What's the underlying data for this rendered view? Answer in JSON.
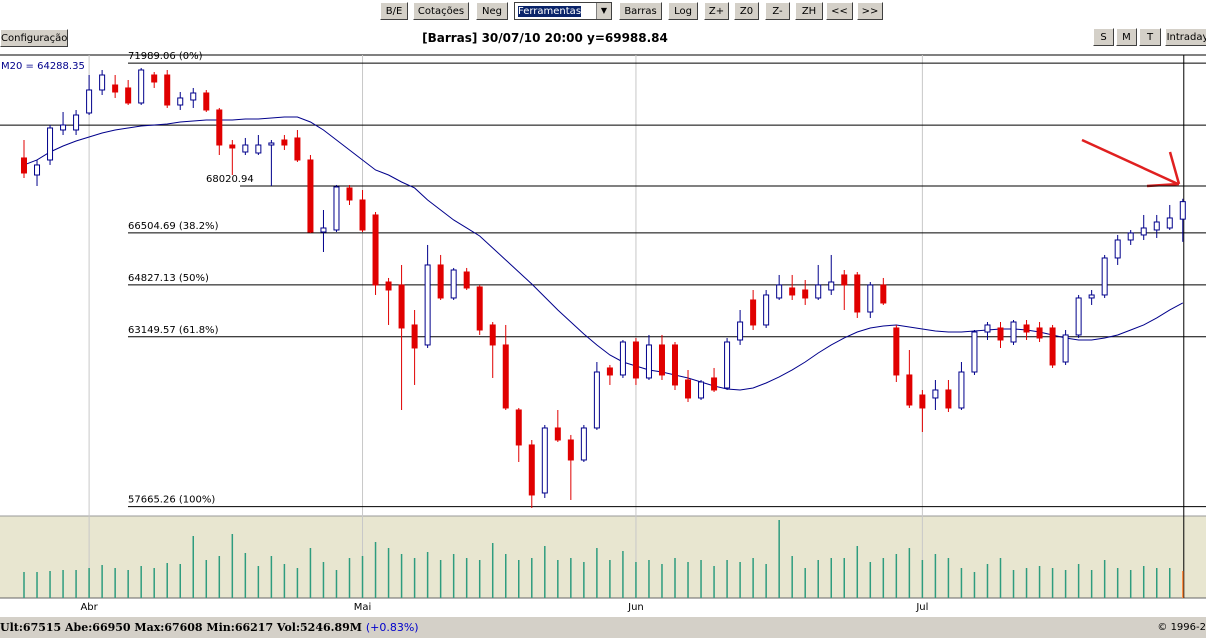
{
  "toolbar": {
    "buttons": [
      "B/E",
      "Cotações",
      "Neg",
      "Barras",
      "Log",
      "Z+",
      "Z0",
      "Z-",
      "ZH",
      "<<",
      ">>"
    ],
    "dropdown": "Ferramentas"
  },
  "config_button": "Configuração",
  "view_buttons": [
    "S",
    "M",
    "T",
    "Intraday"
  ],
  "chart_data": {
    "type": "candlestick",
    "title": "[Barras] 30/07/10 20:00 y=69988.84",
    "categories": [
      null,
      null,
      null,
      null,
      null,
      "Abr",
      null,
      null,
      null,
      null,
      null,
      null,
      null,
      null,
      null,
      null,
      null,
      null,
      null,
      null,
      null,
      null,
      null,
      null,
      null,
      null,
      "Mai",
      null,
      null,
      null,
      null,
      null,
      null,
      null,
      null,
      null,
      null,
      null,
      null,
      null,
      null,
      null,
      null,
      null,
      null,
      null,
      null,
      "Jun",
      null,
      null,
      null,
      null,
      null,
      null,
      null,
      null,
      null,
      null,
      null,
      null,
      null,
      null,
      null,
      null,
      null,
      null,
      null,
      null,
      null,
      "Jul",
      null,
      null,
      null,
      null,
      null,
      null,
      null,
      null,
      null,
      null,
      null,
      null,
      null,
      null,
      null,
      null,
      null,
      null,
      null,
      null
    ],
    "open": [
      68926,
      68376,
      68861,
      69830,
      69830,
      70379,
      71122,
      71283,
      71187,
      70702,
      71606,
      71606,
      70637,
      70799,
      71025,
      70476,
      69345,
      69119,
      69087,
      69345,
      69507,
      69572,
      68861,
      66535,
      66600,
      67957,
      67569,
      67085,
      64920,
      64824,
      63532,
      62886,
      65470,
      64404,
      65243,
      64759,
      63532,
      62886,
      60786,
      59656,
      58105,
      60205,
      59817,
      59171,
      60205,
      62143,
      61917,
      62982,
      61820,
      62886,
      62886,
      61755,
      61174,
      61820,
      61497,
      63047,
      64339,
      63532,
      64404,
      64727,
      64662,
      64404,
      64662,
      65147,
      65147,
      63951,
      64824,
      63435,
      61917,
      61270,
      61174,
      61432,
      60851,
      62013,
      63305,
      63435,
      62982,
      63532,
      63435,
      63435,
      62336,
      63209,
      64404,
      64501,
      65696,
      66277,
      66439,
      66600,
      66665,
      66950
    ],
    "high": [
      69507,
      68861,
      69991,
      70411,
      70476,
      71606,
      71768,
      71606,
      71445,
      71833,
      71703,
      71768,
      71057,
      71187,
      71122,
      70541,
      69507,
      69572,
      69668,
      69507,
      69668,
      69830,
      69022,
      67246,
      68054,
      68054,
      67892,
      67181,
      65050,
      65470,
      64016,
      66116,
      65793,
      65373,
      65373,
      64824,
      63628,
      63532,
      60851,
      59817,
      60302,
      60786,
      59979,
      60302,
      62336,
      62240,
      63047,
      63112,
      63209,
      63209,
      62982,
      62078,
      61755,
      62143,
      63112,
      64016,
      64662,
      64662,
      65147,
      65147,
      64985,
      65470,
      65793,
      65308,
      65243,
      64920,
      65050,
      63532,
      62724,
      61432,
      61755,
      61755,
      62336,
      63370,
      63628,
      63628,
      63693,
      63693,
      63628,
      63532,
      63370,
      64501,
      64662,
      65793,
      66439,
      66600,
      67085,
      67085,
      67408,
      67608
    ],
    "low": [
      68280,
      68021,
      68700,
      69668,
      69668,
      70314,
      70960,
      70864,
      70637,
      70637,
      71187,
      70541,
      70476,
      70541,
      70411,
      69022,
      68376,
      69022,
      69022,
      68021,
      69184,
      68796,
      66503,
      65889,
      66535,
      67408,
      66535,
      64501,
      63532,
      60786,
      61594,
      62789,
      64339,
      64339,
      64662,
      63209,
      61820,
      60786,
      59106,
      57621,
      57944,
      59752,
      57879,
      59106,
      60140,
      61594,
      61820,
      61594,
      61755,
      61755,
      61432,
      61044,
      61109,
      61367,
      61432,
      62886,
      63370,
      63435,
      64339,
      64339,
      64178,
      64339,
      64501,
      64016,
      63758,
      63758,
      64178,
      61690,
      60851,
      60075,
      60786,
      60721,
      60786,
      61917,
      63047,
      62789,
      62886,
      63047,
      62982,
      62143,
      62240,
      63112,
      64178,
      64404,
      65470,
      66116,
      66277,
      66342,
      66600,
      66217
    ],
    "close": [
      68441,
      68700,
      69895,
      69991,
      70314,
      71122,
      71606,
      71057,
      70702,
      71768,
      71380,
      70637,
      70864,
      71025,
      70476,
      69345,
      69249,
      69345,
      69345,
      69410,
      69345,
      68861,
      66535,
      66665,
      67989,
      67569,
      66600,
      64824,
      64662,
      63435,
      62789,
      65470,
      64404,
      65308,
      64727,
      63370,
      62886,
      60851,
      59656,
      58041,
      60205,
      59817,
      59171,
      60205,
      62013,
      61917,
      62982,
      61820,
      62886,
      61917,
      61594,
      61174,
      61690,
      61432,
      62982,
      63628,
      63532,
      64501,
      64824,
      64501,
      64404,
      64824,
      64920,
      64824,
      63951,
      64824,
      64242,
      61917,
      60947,
      60851,
      61432,
      60851,
      62013,
      63305,
      63532,
      63047,
      63628,
      63305,
      63112,
      62240,
      63209,
      64404,
      64501,
      65696,
      66277,
      66503,
      66665,
      66858,
      66988,
      67515
    ],
    "up_color": "#00008b",
    "down_color": "#e00000",
    "ylim": [
      57394,
      72252
    ],
    "grid": true,
    "indicator": {
      "name": "M20 = 64288.35",
      "color": "#00008b",
      "values": [
        68700,
        68861,
        69119,
        69313,
        69475,
        69604,
        69733,
        69830,
        69895,
        69959,
        69991,
        70024,
        70088,
        70121,
        70153,
        70153,
        70153,
        70185,
        70185,
        70218,
        70250,
        70250,
        70088,
        69830,
        69507,
        69184,
        68861,
        68538,
        68376,
        68150,
        67957,
        67569,
        67246,
        66923,
        66665,
        66406,
        66019,
        65631,
        65243,
        64856,
        64436,
        64016,
        63628,
        63241,
        62886,
        62562,
        62336,
        62207,
        62078,
        62013,
        61917,
        61820,
        61690,
        61561,
        61464,
        61432,
        61497,
        61658,
        61852,
        62078,
        62336,
        62627,
        62886,
        63112,
        63305,
        63435,
        63499,
        63532,
        63467,
        63402,
        63338,
        63305,
        63305,
        63338,
        63370,
        63402,
        63402,
        63370,
        63305,
        63209,
        63112,
        63047,
        63047,
        63112,
        63209,
        63370,
        63532,
        63758,
        64016,
        64242
      ]
    },
    "levels": [
      {
        "value": 71989.06,
        "label": "71989.06 (0%)"
      },
      {
        "value": 68020.94,
        "label": "68020.94"
      },
      {
        "value": 66504.69,
        "label": "66504.69 (38.2%)"
      },
      {
        "value": 64827.13,
        "label": "64827.13 (50%)"
      },
      {
        "value": 63149.57,
        "label": "63149.57 (61.8%)"
      },
      {
        "value": 57665.26,
        "label": "57665.26 (100%)"
      }
    ],
    "crosshair_y": 69988.84,
    "volume": {
      "color": "#2e9c7e",
      "last_color": "#ff8c40",
      "ylim": [
        0,
        82
      ],
      "values": [
        26,
        26,
        27,
        28,
        28,
        30,
        33,
        30,
        28,
        32,
        30,
        35,
        34,
        62,
        38,
        42,
        64,
        45,
        32,
        42,
        34,
        30,
        50,
        36,
        28,
        40,
        42,
        56,
        50,
        44,
        40,
        46,
        38,
        44,
        40,
        38,
        55,
        44,
        38,
        40,
        52,
        38,
        40,
        36,
        50,
        38,
        47,
        36,
        38,
        34,
        40,
        36,
        38,
        32,
        38,
        36,
        40,
        34,
        78,
        42,
        30,
        38,
        40,
        40,
        52,
        36,
        40,
        44,
        50,
        38,
        44,
        40,
        30,
        26,
        34,
        40,
        28,
        30,
        32,
        30,
        28,
        34,
        28,
        38,
        30,
        28,
        32,
        30,
        30,
        27
      ]
    }
  },
  "status": {
    "quote": "Ult:67515 Abe:66950 Max:67608 Min:66217 Vol:5246.89M",
    "change": "(+0.83%)",
    "copyright": "© 1996-2"
  }
}
